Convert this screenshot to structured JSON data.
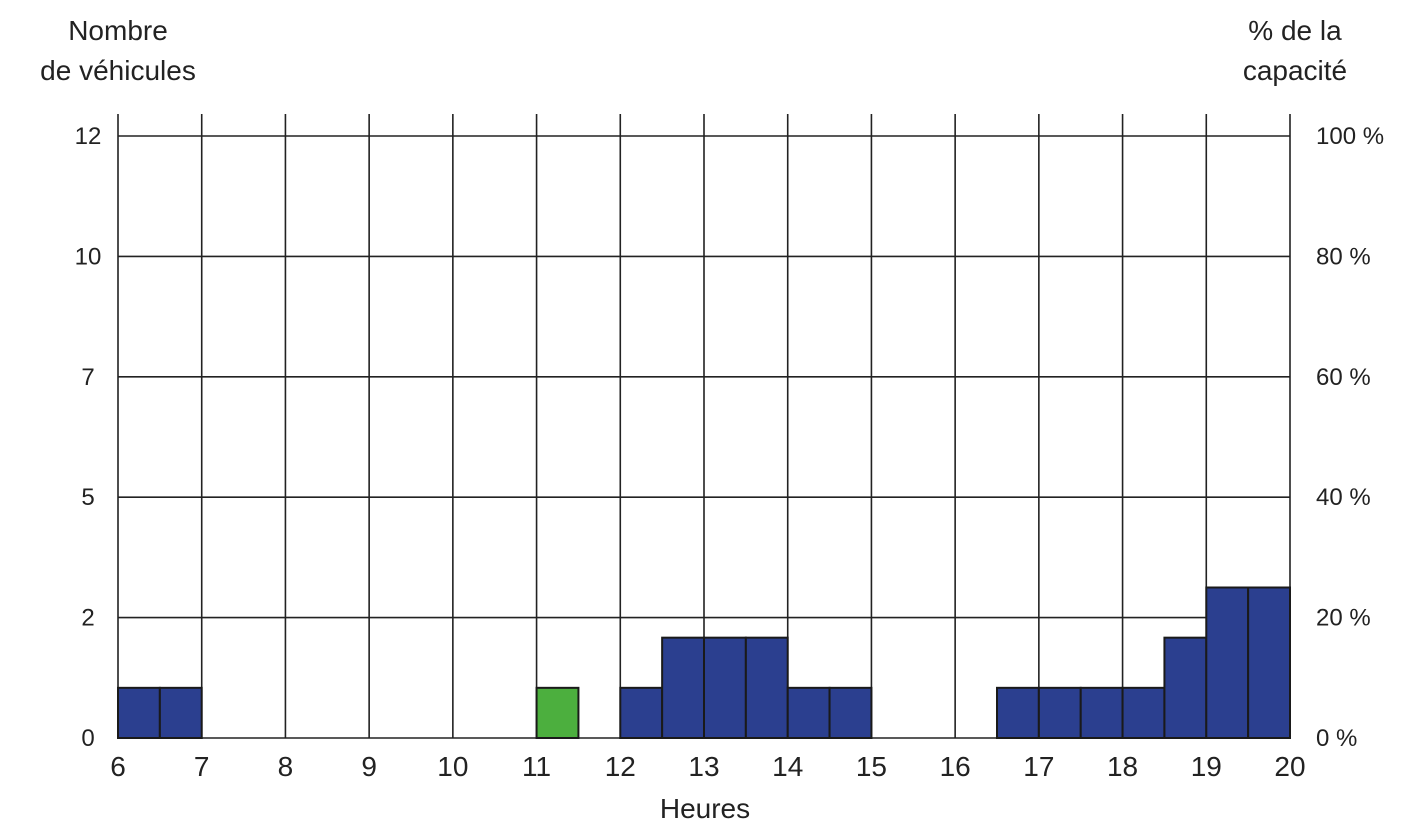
{
  "chart_data": {
    "type": "bar",
    "y_axis_left_title_line1": "Nombre",
    "y_axis_left_title_line2": "de véhicules",
    "y_axis_right_title_line1": "% de la",
    "y_axis_right_title_line2": "capacité",
    "xlabel": "Heures",
    "xlim": [
      6,
      20
    ],
    "x_ticks": [
      "6",
      "7",
      "8",
      "9",
      "10",
      "11",
      "12",
      "13",
      "14",
      "15",
      "16",
      "17",
      "18",
      "19",
      "20"
    ],
    "y_left_ticks": [
      "0",
      "2",
      "5",
      "7",
      "10",
      "12"
    ],
    "y_right_ticks": [
      "0 %",
      "20 %",
      "40 %",
      "60 %",
      "80 %",
      "100 %"
    ],
    "y_fraction_range": [
      0,
      1
    ],
    "bin_width": 0.5,
    "bars": [
      {
        "start": 6.0,
        "vehicles": 1,
        "color": "#2b3f8f"
      },
      {
        "start": 6.5,
        "vehicles": 1,
        "color": "#2b3f8f"
      },
      {
        "start": 11.0,
        "vehicles": 1,
        "color": "#4caf3e"
      },
      {
        "start": 12.0,
        "vehicles": 1,
        "color": "#2b3f8f"
      },
      {
        "start": 12.5,
        "vehicles": 2,
        "color": "#2b3f8f"
      },
      {
        "start": 13.0,
        "vehicles": 2,
        "color": "#2b3f8f"
      },
      {
        "start": 13.5,
        "vehicles": 2,
        "color": "#2b3f8f"
      },
      {
        "start": 14.0,
        "vehicles": 1,
        "color": "#2b3f8f"
      },
      {
        "start": 14.5,
        "vehicles": 1,
        "color": "#2b3f8f"
      },
      {
        "start": 16.5,
        "vehicles": 1,
        "color": "#2b3f8f"
      },
      {
        "start": 17.0,
        "vehicles": 1,
        "color": "#2b3f8f"
      },
      {
        "start": 17.5,
        "vehicles": 1,
        "color": "#2b3f8f"
      },
      {
        "start": 18.0,
        "vehicles": 1,
        "color": "#2b3f8f"
      },
      {
        "start": 18.5,
        "vehicles": 2,
        "color": "#2b3f8f"
      },
      {
        "start": 19.0,
        "vehicles": 3,
        "color": "#2b3f8f"
      },
      {
        "start": 19.5,
        "vehicles": 3,
        "color": "#2b3f8f"
      }
    ],
    "capacity_vehicles": 12,
    "grid": true,
    "colors": {
      "primary": "#2b3f8f",
      "highlight": "#4caf3e",
      "grid": "#222222"
    }
  }
}
